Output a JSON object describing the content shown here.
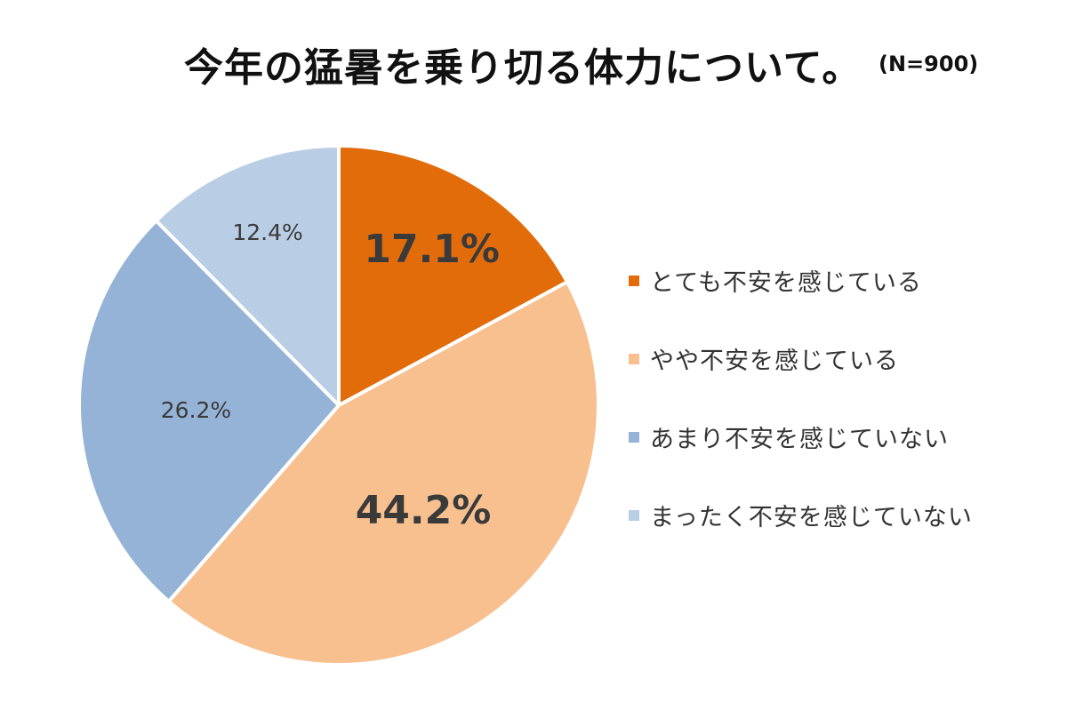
{
  "chart_data": {
    "type": "pie",
    "title": "今年の猛暑を乗り切る体力について。",
    "subtitle": "(N=900)",
    "categories": [
      "とても不安を感じている",
      "やや不安を感じている",
      "あまり不安を感じていない",
      "まったく不安を感じていない"
    ],
    "values": [
      17.1,
      44.2,
      26.2,
      12.4
    ],
    "labels": [
      "17.1%",
      "44.2%",
      "26.2%",
      "12.4%"
    ],
    "colors": [
      "#E36C0A",
      "#F8C08F",
      "#95B3D7",
      "#B9CDE5"
    ],
    "legend_position": "right"
  }
}
